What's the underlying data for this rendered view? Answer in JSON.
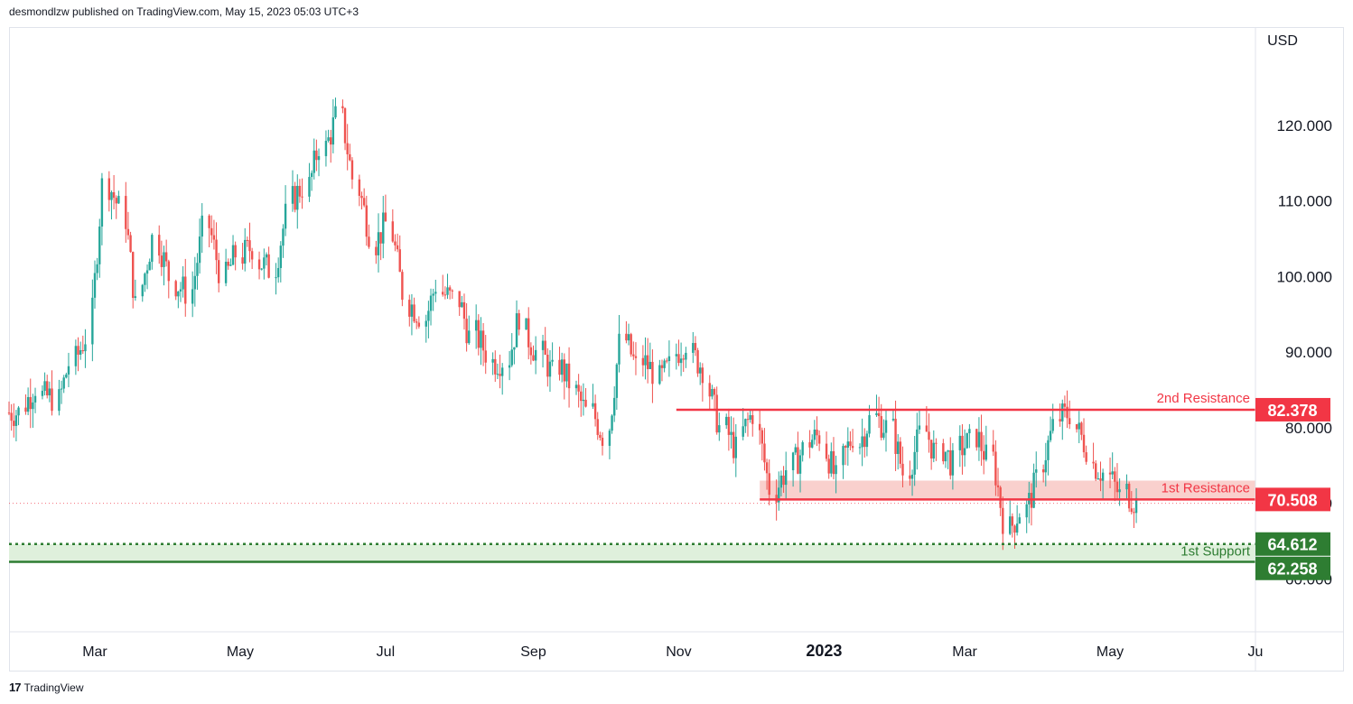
{
  "header": {
    "published": "desmondlzw published on TradingView.com, May 15, 2023 05:03 UTC+3"
  },
  "footer": {
    "logo_glyph": "17",
    "brand": "TradingView"
  },
  "colors": {
    "up": "#26a69a",
    "down": "#ef5350",
    "upFill": "#26a69a",
    "downFill": "#ef5350",
    "resistance": "#f23645",
    "support": "#2e7d32",
    "resistanceZone": "#f8c8c4",
    "supportZone": "#dff0dc",
    "axisText": "#131722",
    "grid": "#e0e3eb"
  },
  "chart_data": {
    "type": "candlestick",
    "currency": "USD",
    "y_ticks": [
      120,
      110,
      100,
      90,
      80,
      70,
      60
    ],
    "y_tick_labels": [
      "120.000",
      "110.000",
      "100.000",
      "90.000",
      "80.000",
      "70.000",
      "60.000"
    ],
    "ylim": [
      53,
      133
    ],
    "x_labels": [
      "Mar",
      "May",
      "Jul",
      "Sep",
      "Nov",
      "2023",
      "Mar",
      "May",
      "Ju"
    ],
    "x_label_dates": [
      "2022-03-01",
      "2022-05-01",
      "2022-07-01",
      "2022-09-01",
      "2022-11-01",
      "2023-01-01",
      "2023-03-01",
      "2023-05-01",
      "2023-07-01"
    ],
    "x_range": [
      "2022-01-24",
      "2023-07-01"
    ],
    "levels": [
      {
        "name": "2nd Resistance",
        "value": 82.378,
        "label": "82.378",
        "kind": "resistance",
        "start": "2022-10-31"
      },
      {
        "name": "1st Resistance",
        "value": 70.508,
        "label": "70.508",
        "kind": "resistance",
        "start": "2022-12-05",
        "zone_top": 73.0
      },
      {
        "name": "1st Support",
        "value": 64.612,
        "label": "64.612",
        "kind": "support",
        "style": "dotted",
        "zone_bottom": 62.258
      },
      {
        "name": "",
        "value": 62.258,
        "label": "62.258",
        "kind": "support",
        "style": "solid"
      }
    ],
    "last_price": 70.0,
    "weekly_closes": [
      [
        "2022-01-24",
        82.0
      ],
      [
        "2022-01-31",
        85.5
      ],
      [
        "2022-02-07",
        84.0
      ],
      [
        "2022-02-14",
        88.5
      ],
      [
        "2022-02-21",
        92.0
      ],
      [
        "2022-02-28",
        112.0
      ],
      [
        "2022-03-07",
        109.0
      ],
      [
        "2022-03-14",
        96.0
      ],
      [
        "2022-03-21",
        105.0
      ],
      [
        "2022-03-28",
        100.0
      ],
      [
        "2022-04-04",
        98.0
      ],
      [
        "2022-04-11",
        106.0
      ],
      [
        "2022-04-18",
        101.0
      ],
      [
        "2022-04-25",
        103.0
      ],
      [
        "2022-05-02",
        104.0
      ],
      [
        "2022-05-09",
        101.0
      ],
      [
        "2022-05-16",
        108.0
      ],
      [
        "2022-05-23",
        112.0
      ],
      [
        "2022-05-30",
        117.5
      ],
      [
        "2022-06-06",
        121.0
      ],
      [
        "2022-06-13",
        113.0
      ],
      [
        "2022-06-20",
        106.0
      ],
      [
        "2022-06-27",
        107.0
      ],
      [
        "2022-07-04",
        98.0
      ],
      [
        "2022-07-11",
        95.0
      ],
      [
        "2022-07-18",
        99.0
      ],
      [
        "2022-07-25",
        97.0
      ],
      [
        "2022-08-01",
        92.0
      ],
      [
        "2022-08-08",
        90.0
      ],
      [
        "2022-08-15",
        89.0
      ],
      [
        "2022-08-22",
        95.0
      ],
      [
        "2022-08-29",
        90.0
      ],
      [
        "2022-09-05",
        87.0
      ],
      [
        "2022-09-12",
        86.0
      ],
      [
        "2022-09-19",
        82.0
      ],
      [
        "2022-09-26",
        79.0
      ],
      [
        "2022-10-03",
        91.0
      ],
      [
        "2022-10-10",
        88.0
      ],
      [
        "2022-10-17",
        87.5
      ],
      [
        "2022-10-24",
        88.0
      ],
      [
        "2022-10-31",
        91.5
      ],
      [
        "2022-11-07",
        88.0
      ],
      [
        "2022-11-14",
        80.0
      ],
      [
        "2022-11-21",
        77.0
      ],
      [
        "2022-11-28",
        82.0
      ],
      [
        "2022-12-05",
        72.0
      ],
      [
        "2022-12-12",
        74.5
      ],
      [
        "2022-12-19",
        77.0
      ],
      [
        "2022-12-26",
        79.0
      ],
      [
        "2023-01-02",
        73.0
      ],
      [
        "2023-01-09",
        79.0
      ],
      [
        "2023-01-16",
        81.0
      ],
      [
        "2023-01-23",
        80.0
      ],
      [
        "2023-01-30",
        74.0
      ],
      [
        "2023-02-06",
        79.0
      ],
      [
        "2023-02-13",
        76.0
      ],
      [
        "2023-02-20",
        75.0
      ],
      [
        "2023-02-27",
        78.0
      ],
      [
        "2023-03-06",
        76.0
      ],
      [
        "2023-03-13",
        68.0
      ],
      [
        "2023-03-20",
        69.0
      ],
      [
        "2023-03-27",
        73.0
      ],
      [
        "2023-04-03",
        80.0
      ],
      [
        "2023-04-10",
        82.0
      ],
      [
        "2023-04-17",
        77.5
      ],
      [
        "2023-04-24",
        74.0
      ],
      [
        "2023-05-01",
        71.0
      ],
      [
        "2023-05-08",
        70.0
      ]
    ]
  }
}
